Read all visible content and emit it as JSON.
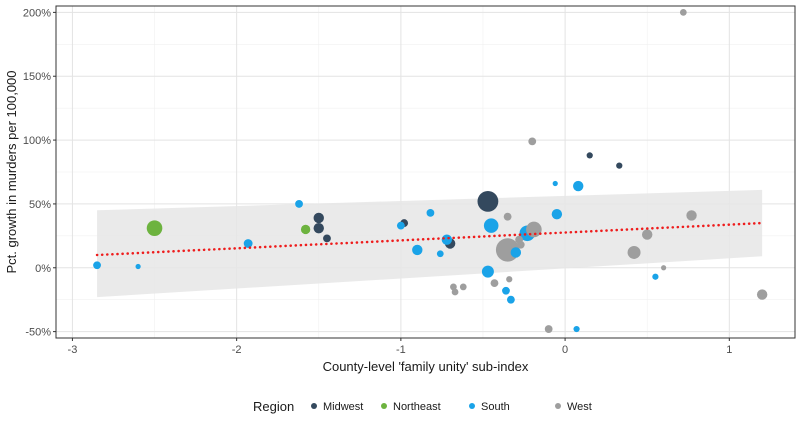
{
  "chart_data": {
    "type": "scatter",
    "xlabel": "County-level 'family unity' sub-index",
    "ylabel": "Pct. growth in murders per 100,000",
    "xlim": [
      -3.1,
      1.4
    ],
    "ylim": [
      -55,
      205
    ],
    "x_ticks": [
      {
        "value": -3,
        "label": "-3"
      },
      {
        "value": -2,
        "label": "-2"
      },
      {
        "value": -1,
        "label": "-1"
      },
      {
        "value": 0,
        "label": "0"
      },
      {
        "value": 1,
        "label": "1"
      }
    ],
    "y_ticks": [
      {
        "value": -50,
        "label": "-50%"
      },
      {
        "value": 0,
        "label": "0%"
      },
      {
        "value": 50,
        "label": "50%"
      },
      {
        "value": 100,
        "label": "100%"
      },
      {
        "value": 150,
        "label": "150%"
      },
      {
        "value": 200,
        "label": "200%"
      }
    ],
    "grid": true,
    "legend": {
      "title": "Region",
      "position": "bottom",
      "entries": [
        {
          "name": "Midwest",
          "color": "#34495e"
        },
        {
          "name": "Northeast",
          "color": "#6db33f"
        },
        {
          "name": "South",
          "color": "#1aa3e8"
        },
        {
          "name": "West",
          "color": "#9e9e9e"
        }
      ]
    },
    "trend": {
      "style": "dotted",
      "color": "#ee1c1c",
      "x": [
        -2.85,
        1.2
      ],
      "y": [
        10,
        35
      ],
      "band_color": "#e6e6e6",
      "band_lower": [
        -23,
        9
      ],
      "band_upper": [
        45,
        61
      ]
    },
    "series": [
      {
        "name": "Midwest",
        "color": "#34495e",
        "points": [
          {
            "x": -1.5,
            "y": 39,
            "size": 2
          },
          {
            "x": -1.5,
            "y": 31,
            "size": 2
          },
          {
            "x": -1.45,
            "y": 23,
            "size": 1.5
          },
          {
            "x": -0.98,
            "y": 35,
            "size": 1.5
          },
          {
            "x": -0.7,
            "y": 19,
            "size": 2
          },
          {
            "x": -0.47,
            "y": 52,
            "size": 4
          },
          {
            "x": 0.15,
            "y": 88,
            "size": 1.2
          },
          {
            "x": 0.33,
            "y": 80,
            "size": 1.2
          }
        ]
      },
      {
        "name": "Northeast",
        "color": "#6db33f",
        "points": [
          {
            "x": -2.5,
            "y": 31,
            "size": 3
          },
          {
            "x": -1.58,
            "y": 30,
            "size": 1.8
          }
        ]
      },
      {
        "name": "South",
        "color": "#1aa3e8",
        "points": [
          {
            "x": -2.85,
            "y": 2,
            "size": 1.5
          },
          {
            "x": -2.6,
            "y": 1,
            "size": 1
          },
          {
            "x": -1.93,
            "y": 19,
            "size": 1.7
          },
          {
            "x": -1.62,
            "y": 50,
            "size": 1.5
          },
          {
            "x": -1.0,
            "y": 33,
            "size": 1.5
          },
          {
            "x": -0.9,
            "y": 14,
            "size": 2
          },
          {
            "x": -0.82,
            "y": 43,
            "size": 1.5
          },
          {
            "x": -0.76,
            "y": 11,
            "size": 1.3
          },
          {
            "x": -0.72,
            "y": 22,
            "size": 2
          },
          {
            "x": -0.47,
            "y": -3,
            "size": 2.3
          },
          {
            "x": -0.45,
            "y": 33,
            "size": 2.8
          },
          {
            "x": -0.36,
            "y": -18,
            "size": 1.5
          },
          {
            "x": -0.3,
            "y": 12,
            "size": 2
          },
          {
            "x": -0.33,
            "y": -25,
            "size": 1.5
          },
          {
            "x": -0.23,
            "y": 27,
            "size": 3
          },
          {
            "x": -0.05,
            "y": 42,
            "size": 2
          },
          {
            "x": -0.06,
            "y": 66,
            "size": 1
          },
          {
            "x": 0.08,
            "y": 64,
            "size": 2
          },
          {
            "x": 0.07,
            "y": -48,
            "size": 1.2
          },
          {
            "x": 0.55,
            "y": -7,
            "size": 1.2
          }
        ]
      },
      {
        "name": "West",
        "color": "#9e9e9e",
        "points": [
          {
            "x": -0.68,
            "y": -15,
            "size": 1.3
          },
          {
            "x": -0.67,
            "y": -19,
            "size": 1.3
          },
          {
            "x": -0.62,
            "y": -15,
            "size": 1.3
          },
          {
            "x": -0.43,
            "y": -12,
            "size": 1.5
          },
          {
            "x": -0.35,
            "y": 40,
            "size": 1.5
          },
          {
            "x": -0.34,
            "y": -9,
            "size": 1.2
          },
          {
            "x": -0.35,
            "y": 14,
            "size": 4.5
          },
          {
            "x": -0.28,
            "y": 22,
            "size": 1.5
          },
          {
            "x": -0.27,
            "y": 18,
            "size": 1.5
          },
          {
            "x": -0.19,
            "y": 30,
            "size": 3
          },
          {
            "x": -0.2,
            "y": 99,
            "size": 1.5
          },
          {
            "x": -0.1,
            "y": -48,
            "size": 1.5
          },
          {
            "x": 0.42,
            "y": 12,
            "size": 2.5
          },
          {
            "x": 0.5,
            "y": 26,
            "size": 2
          },
          {
            "x": 0.6,
            "y": 0,
            "size": 1
          },
          {
            "x": 0.72,
            "y": 200,
            "size": 1.3
          },
          {
            "x": 0.77,
            "y": 41,
            "size": 2
          },
          {
            "x": 1.2,
            "y": -21,
            "size": 2
          }
        ]
      }
    ]
  }
}
